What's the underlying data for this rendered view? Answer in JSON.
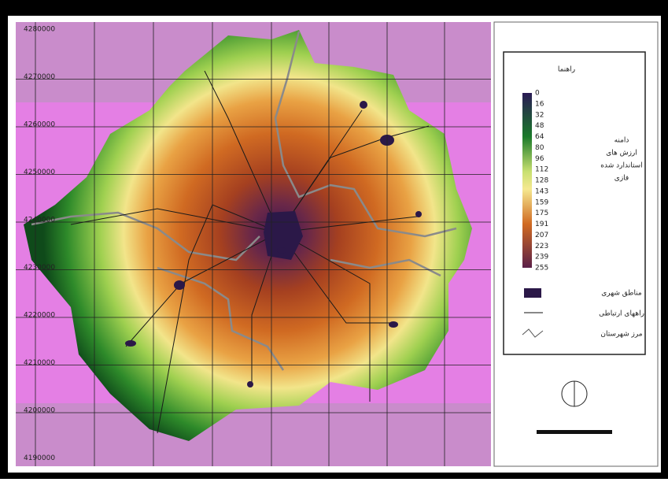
{
  "map": {
    "y_labels": [
      "4280000",
      "4270000",
      "4260000",
      "4250000",
      "4240000",
      "4230000",
      "4220000",
      "4210000",
      "4200000",
      "4190000"
    ],
    "legend": {
      "title": "راهنما",
      "scale_ticks": [
        "0",
        "16",
        "32",
        "48",
        "64",
        "80",
        "96",
        "112",
        "128",
        "143",
        "159",
        "175",
        "191",
        "207",
        "223",
        "239",
        "255"
      ],
      "scale_caption": [
        "دامنه",
        "ارزش های",
        "استاندارد شده",
        "فازی"
      ],
      "items": [
        "مناطق شهری",
        "راههای ارتباطی",
        "مرز شهرستان"
      ]
    }
  }
}
